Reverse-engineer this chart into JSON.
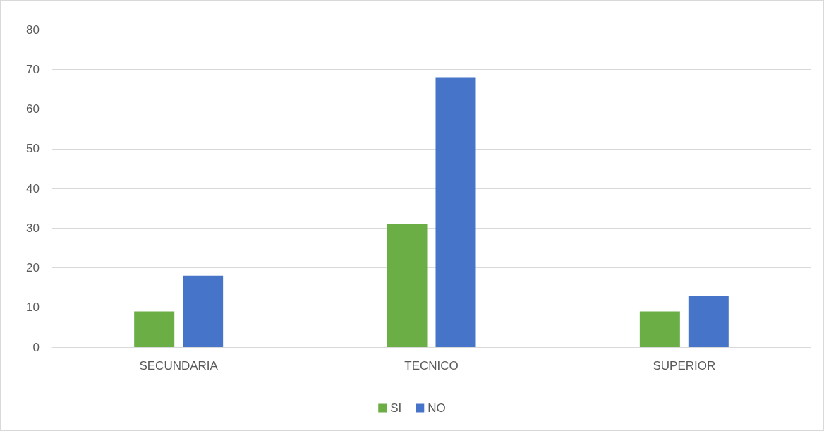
{
  "chart_data": {
    "type": "bar",
    "categories": [
      "SECUNDARIA",
      "TECNICO",
      "SUPERIOR"
    ],
    "series": [
      {
        "name": "SI",
        "color": "#6aae45",
        "values": [
          9,
          31,
          9
        ]
      },
      {
        "name": "NO",
        "color": "#4574c9",
        "values": [
          18,
          68,
          13
        ]
      }
    ],
    "ylim": [
      0,
      80
    ],
    "yticks": [
      0,
      10,
      20,
      30,
      40,
      50,
      60,
      70,
      80
    ],
    "grid": "y",
    "legend": "bottom"
  }
}
